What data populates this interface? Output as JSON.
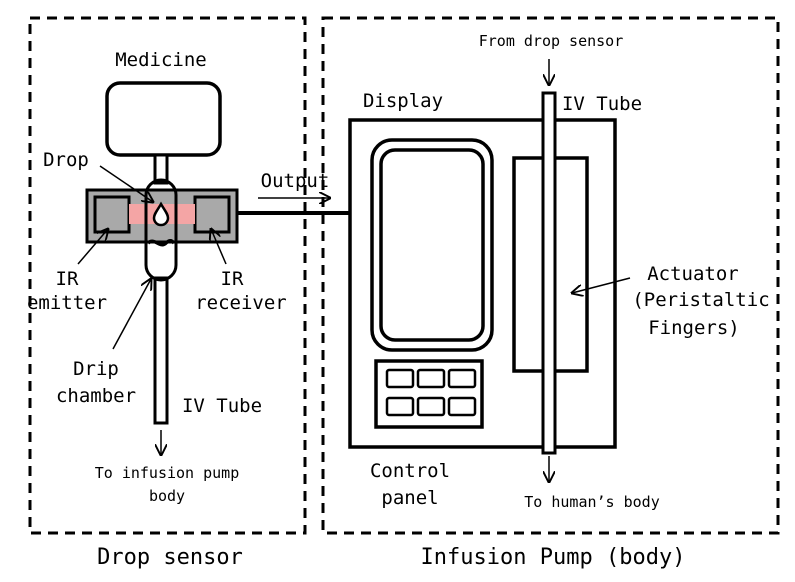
{
  "diagram": {
    "drop_sensor": {
      "title": "Drop sensor",
      "medicine_label": "Medicine",
      "drop_label": "Drop",
      "output_label": "Output",
      "ir_emitter_label": [
        "IR",
        "emitter"
      ],
      "ir_receiver_label": [
        "IR",
        "receiver"
      ],
      "drip_chamber_label": [
        "Drip",
        "chamber"
      ],
      "iv_tube_label": "IV Tube",
      "to_pump_label": [
        "To infusion pump",
        "body"
      ]
    },
    "infusion_pump": {
      "title": "Infusion Pump (body)",
      "from_sensor_label": "From drop sensor",
      "display_label": "Display",
      "iv_tube_label": "IV Tube",
      "actuator_label": [
        "Actuator",
        "(Peristaltic",
        "Fingers)"
      ],
      "control_panel_label": [
        "Control",
        "panel"
      ],
      "to_human_label": "To human’s body"
    },
    "colors": {
      "stroke": "#000000",
      "sensor_block": "#a9a9a9",
      "ir_beam": "#f4a5a5",
      "background": "#ffffff"
    }
  }
}
